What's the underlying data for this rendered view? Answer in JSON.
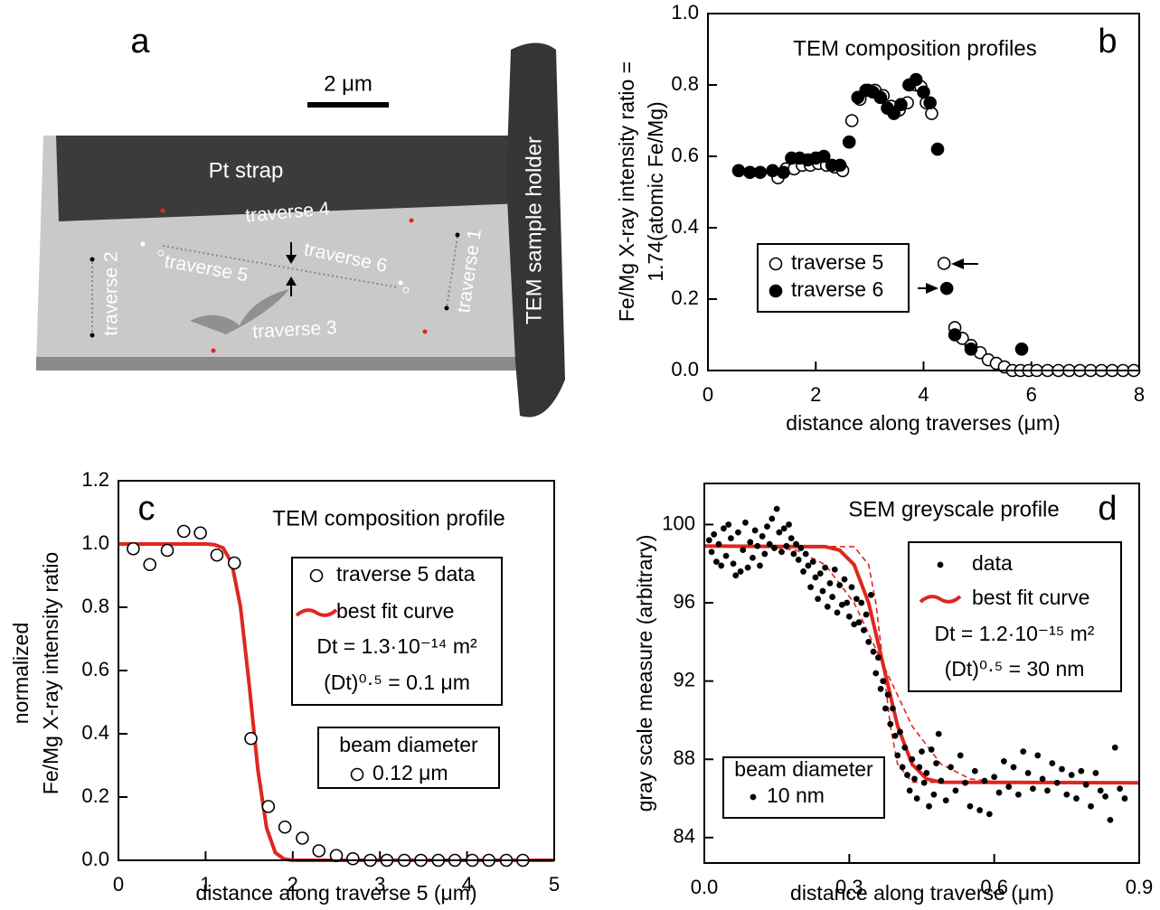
{
  "image_panel": {
    "panel": "a",
    "scale_bar": "2 μm",
    "pt_strap": "Pt strap",
    "holder": "TEM sample holder",
    "traverses": [
      "traverse 1",
      "traverse 2",
      "traverse 3",
      "traverse 4",
      "traverse 5",
      "traverse 6"
    ]
  },
  "chart_data": [
    {
      "type": "scatter",
      "panel": "b",
      "title": "TEM composition profiles",
      "xlabel": "distance along traverses (μm)",
      "ylabel": [
        "Fe/Mg X-ray intensity ratio =",
        "1.74(atomic Fe/Mg)"
      ],
      "xlim": [
        0,
        8
      ],
      "ylim": [
        0,
        1.0
      ],
      "xticks": [
        0,
        2,
        4,
        6,
        8
      ],
      "yticks": [
        {
          "value": 0,
          "label": "0.0"
        },
        0.2,
        0.4,
        0.6,
        0.8,
        {
          "value": 1,
          "label": "1.0"
        }
      ],
      "series": [
        {
          "name": "traverse 5",
          "marker": "open",
          "color": "#000000",
          "x": [
            1.3,
            1.45,
            1.6,
            1.75,
            1.9,
            2.05,
            2.2,
            2.35,
            2.5,
            2.67,
            2.82,
            2.97,
            3.1,
            3.25,
            3.4,
            3.55,
            3.7,
            3.85,
            3.95,
            4.05,
            4.15,
            4.38,
            4.58,
            4.72,
            4.88,
            5.05,
            5.2,
            5.35,
            5.5,
            5.65,
            5.8,
            5.95,
            6.1,
            6.3,
            6.5,
            6.7,
            6.9,
            7.1,
            7.3,
            7.5,
            7.7,
            7.9
          ],
          "values": [
            0.54,
            0.565,
            0.565,
            0.575,
            0.575,
            0.58,
            0.575,
            0.57,
            0.56,
            0.7,
            0.76,
            0.785,
            0.785,
            0.77,
            0.74,
            0.73,
            0.75,
            0.8,
            0.795,
            0.75,
            0.72,
            0.3,
            0.12,
            0.09,
            0.07,
            0.05,
            0.03,
            0.02,
            0.01,
            0,
            0,
            0,
            0,
            0,
            0,
            0,
            0,
            0,
            0,
            0,
            0,
            0
          ]
        },
        {
          "name": "traverse 6",
          "marker": "filled",
          "color": "#000000",
          "x": [
            0.57,
            0.78,
            0.97,
            1.2,
            1.4,
            1.55,
            1.7,
            1.85,
            2.0,
            2.15,
            2.3,
            2.45,
            2.62,
            2.78,
            2.93,
            3.06,
            3.2,
            3.33,
            3.45,
            3.58,
            3.73,
            3.86,
            4.0,
            4.12,
            4.26,
            4.43,
            4.58,
            4.88,
            5.82
          ],
          "values": [
            0.56,
            0.555,
            0.555,
            0.56,
            0.555,
            0.595,
            0.595,
            0.59,
            0.595,
            0.6,
            0.575,
            0.575,
            0.64,
            0.765,
            0.785,
            0.78,
            0.765,
            0.735,
            0.72,
            0.745,
            0.8,
            0.815,
            0.78,
            0.75,
            0.62,
            0.23,
            0.1,
            0.06,
            0.06
          ]
        }
      ]
    },
    {
      "type": "scatter",
      "panel": "c",
      "title": "TEM composition profile",
      "xlabel": "distance along traverse 5 (μm)",
      "ylabel": [
        "normalized",
        "Fe/Mg X-ray intensity ratio"
      ],
      "xlim": [
        0,
        5
      ],
      "ylim": [
        0,
        1.2
      ],
      "xticks": [
        0,
        1,
        2,
        3,
        4,
        5
      ],
      "yticks": [
        {
          "value": 0,
          "label": "0.0"
        },
        0.2,
        0.4,
        0.6,
        0.8,
        {
          "value": 1,
          "label": "1.0"
        },
        1.2
      ],
      "series": [
        {
          "name": "traverse 5 data",
          "marker": "open",
          "color": "#000000",
          "x": [
            0.17,
            0.36,
            0.56,
            0.75,
            0.94,
            1.13,
            1.33,
            1.52,
            1.72,
            1.91,
            2.11,
            2.3,
            2.5,
            2.69,
            2.89,
            3.08,
            3.28,
            3.47,
            3.67,
            3.86,
            4.06,
            4.25,
            4.45,
            4.64
          ],
          "values": [
            0.985,
            0.935,
            0.98,
            1.04,
            1.035,
            0.965,
            0.94,
            0.385,
            0.17,
            0.105,
            0.07,
            0.03,
            0.015,
            0.005,
            0,
            0,
            0,
            0,
            0,
            0,
            0,
            0,
            0,
            0
          ]
        },
        {
          "name": "best fit curve",
          "marker": "line",
          "color": "#e0261f",
          "x": [
            0,
            0.5,
            1.0,
            1.1,
            1.2,
            1.3,
            1.4,
            1.5,
            1.6,
            1.7,
            1.8,
            1.9,
            2.0,
            2.5,
            5.0
          ],
          "values": [
            1,
            1,
            1,
            0.998,
            0.988,
            0.94,
            0.802,
            0.556,
            0.286,
            0.102,
            0.024,
            0.004,
            0,
            0,
            0
          ]
        }
      ],
      "notes": [
        "Dt = 1.3·10⁻¹⁴ m²",
        "(Dt)⁰·⁵ = 0.1 μm"
      ],
      "beam_box": {
        "title": "beam diameter",
        "label": "0.12 μm",
        "marker": "open"
      }
    },
    {
      "type": "scatter",
      "panel": "d",
      "title": "SEM greyscale profile",
      "xlabel": "distance along traverse (μm)",
      "ylabel": [
        "gray scale measure (arbitrary)"
      ],
      "xlim": [
        0,
        0.9
      ],
      "ylim": [
        82.7,
        102.1
      ],
      "xticks": [
        {
          "value": 0,
          "label": "0.0"
        },
        0.3,
        0.6,
        0.9
      ],
      "yticks": [
        84,
        88,
        92,
        96,
        100
      ],
      "series": [
        {
          "name": "data",
          "marker": "dot",
          "color": "#000000",
          "x": [
            0.01,
            0.015,
            0.02,
            0.025,
            0.03,
            0.035,
            0.04,
            0.045,
            0.05,
            0.055,
            0.06,
            0.065,
            0.07,
            0.075,
            0.08,
            0.085,
            0.09,
            0.095,
            0.1,
            0.105,
            0.11,
            0.115,
            0.12,
            0.125,
            0.13,
            0.135,
            0.14,
            0.145,
            0.15,
            0.155,
            0.16,
            0.165,
            0.17,
            0.175,
            0.18,
            0.185,
            0.19,
            0.195,
            0.2,
            0.205,
            0.21,
            0.215,
            0.22,
            0.225,
            0.23,
            0.235,
            0.24,
            0.245,
            0.25,
            0.255,
            0.26,
            0.265,
            0.27,
            0.275,
            0.28,
            0.285,
            0.29,
            0.295,
            0.3,
            0.305,
            0.31,
            0.315,
            0.32,
            0.325,
            0.33,
            0.335,
            0.34,
            0.345,
            0.35,
            0.355,
            0.36,
            0.365,
            0.37,
            0.375,
            0.38,
            0.385,
            0.39,
            0.395,
            0.4,
            0.405,
            0.41,
            0.415,
            0.42,
            0.425,
            0.43,
            0.435,
            0.44,
            0.445,
            0.45,
            0.455,
            0.46,
            0.465,
            0.47,
            0.475,
            0.48,
            0.485,
            0.49,
            0.5,
            0.51,
            0.52,
            0.53,
            0.54,
            0.55,
            0.56,
            0.57,
            0.58,
            0.59,
            0.6,
            0.61,
            0.62,
            0.63,
            0.64,
            0.65,
            0.66,
            0.67,
            0.68,
            0.69,
            0.7,
            0.71,
            0.72,
            0.73,
            0.74,
            0.75,
            0.76,
            0.77,
            0.78,
            0.79,
            0.8,
            0.81,
            0.82,
            0.83,
            0.84,
            0.85,
            0.86,
            0.87
          ],
          "values": [
            99.2,
            98.6,
            99.5,
            98.1,
            99.0,
            97.9,
            99.8,
            98.4,
            100.0,
            99.3,
            98.0,
            97.4,
            99.6,
            97.6,
            98.7,
            100.1,
            97.8,
            99.1,
            98.3,
            99.7,
            98.9,
            97.9,
            99.4,
            98.5,
            99.9,
            99.0,
            100.3,
            98.8,
            100.8,
            99.6,
            98.6,
            99.8,
            98.9,
            100.0,
            99.3,
            98.5,
            99.0,
            98.2,
            98.8,
            97.6,
            98.5,
            97.9,
            96.8,
            98.1,
            97.3,
            96.2,
            97.5,
            96.6,
            97.8,
            95.8,
            97.0,
            96.3,
            97.7,
            95.5,
            96.9,
            95.9,
            97.2,
            96.0,
            95.3,
            96.8,
            94.9,
            96.2,
            95.0,
            96.0,
            94.6,
            95.4,
            94.0,
            96.4,
            93.5,
            92.4,
            93.2,
            91.6,
            92.0,
            90.6,
            91.3,
            89.8,
            90.6,
            89.2,
            88.2,
            89.4,
            87.6,
            88.6,
            87.2,
            86.4,
            88.0,
            87.0,
            86.0,
            87.6,
            88.4,
            86.8,
            87.3,
            85.6,
            88.5,
            86.2,
            87.8,
            89.3,
            86.9,
            85.9,
            87.6,
            86.4,
            88.2,
            86.8,
            85.6,
            87.4,
            85.4,
            86.9,
            85.2,
            87.1,
            86.3,
            87.9,
            86.6,
            87.6,
            86.2,
            88.4,
            87.3,
            86.5,
            88.2,
            87.0,
            86.4,
            87.8,
            86.8,
            87.5,
            86.2,
            87.2,
            86.0,
            87.4,
            86.7,
            85.6,
            87.3,
            86.4,
            86.1,
            84.9,
            88.6,
            86.5,
            86.0
          ]
        },
        {
          "name": "best fit curve",
          "marker": "line",
          "color": "#e0261f",
          "x": [
            0,
            0.25,
            0.28,
            0.31,
            0.34,
            0.37,
            0.4,
            0.43,
            0.46,
            0.49,
            0.9
          ],
          "values": [
            98.9,
            98.87,
            98.69,
            97.95,
            96.0,
            92.85,
            89.7,
            87.75,
            87.0,
            86.83,
            86.8
          ]
        },
        {
          "marker": "dashed",
          "color": "#e0261f",
          "x": [
            0,
            0.31,
            0.34,
            0.355,
            0.37,
            0.385,
            0.4,
            0.43,
            0.9
          ],
          "values": [
            98.9,
            98.87,
            97.95,
            96.0,
            92.85,
            89.7,
            87.75,
            86.83,
            86.8
          ]
        },
        {
          "marker": "dashed",
          "color": "#e0261f",
          "x": [
            0,
            0.13,
            0.19,
            0.25,
            0.31,
            0.37,
            0.43,
            0.49,
            0.55,
            0.61,
            0.9
          ],
          "values": [
            98.9,
            98.87,
            98.69,
            97.95,
            96.0,
            92.85,
            89.7,
            87.75,
            87.0,
            86.83,
            86.8
          ]
        }
      ],
      "notes": [
        "Dt = 1.2·10⁻¹⁵ m²",
        "(Dt)⁰·⁵ = 30 nm"
      ],
      "beam_box": {
        "title": "beam diameter",
        "label": "10 nm",
        "marker": "dot"
      }
    }
  ]
}
